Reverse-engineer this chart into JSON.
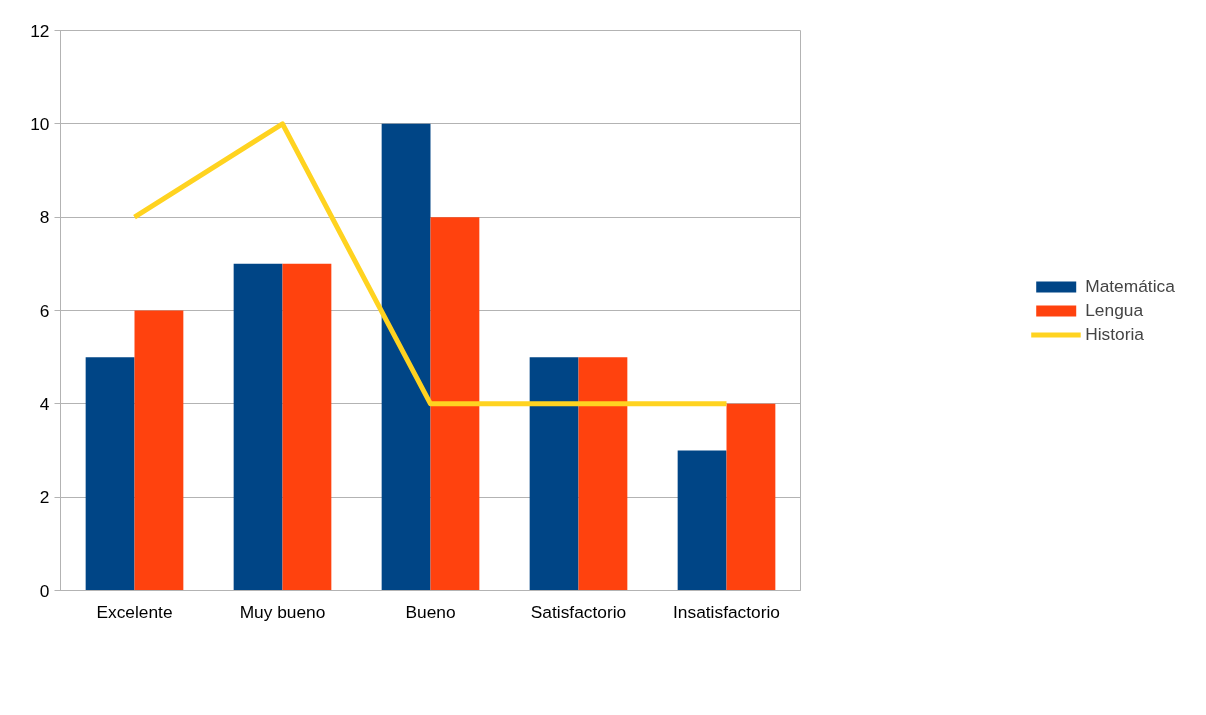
{
  "chart_data": {
    "type": "bar",
    "categories": [
      "Excelente",
      "Muy bueno",
      "Bueno",
      "Satisfactorio",
      "Insatisfactorio"
    ],
    "series": [
      {
        "name": "Matemática",
        "color": "#004586",
        "values": [
          5,
          7,
          10,
          5,
          3
        ]
      },
      {
        "name": "Lengua",
        "color": "#ff420e",
        "values": [
          6,
          7,
          8,
          5,
          4
        ]
      },
      {
        "name": "Historia",
        "color": "#ffd320",
        "type": "line",
        "values": [
          8,
          10,
          4,
          4,
          4
        ]
      }
    ],
    "ylim": [
      0,
      12
    ],
    "yticks": [
      0,
      2,
      4,
      6,
      8,
      10,
      12
    ],
    "grid": "y",
    "legend": "right",
    "marker": "none"
  }
}
